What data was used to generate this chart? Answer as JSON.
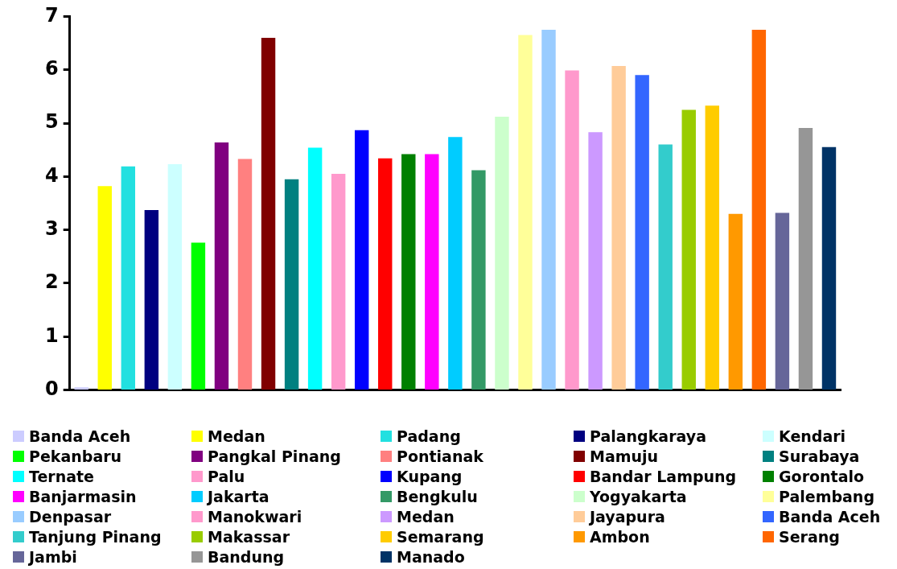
{
  "chart_data": {
    "type": "bar",
    "categories": [
      null,
      null,
      null,
      null,
      null,
      null,
      null,
      null,
      null,
      null,
      null,
      null,
      null,
      null,
      null,
      null,
      null,
      null,
      null,
      null,
      null,
      null,
      null,
      null,
      null,
      null,
      null,
      null,
      null,
      null,
      null,
      null,
      null
    ],
    "ylim": [
      0,
      7
    ],
    "yticks": [
      0,
      1,
      2,
      3,
      4,
      5,
      6,
      7
    ],
    "grid": false,
    "legend": "bottom",
    "tick_labels": "y",
    "series": [
      {
        "name": "Banda Aceh",
        "color": "#ccccff",
        "values": [
          0.05,
          null,
          null,
          null,
          null,
          null,
          null,
          null,
          null,
          null,
          null,
          null,
          null,
          null,
          null,
          null,
          null,
          null,
          null,
          null,
          null,
          null,
          null,
          null,
          null,
          null,
          null,
          null,
          null,
          null,
          null,
          null,
          null
        ]
      },
      {
        "name": "Medan",
        "color": "#ffff00",
        "values": [
          null,
          3.82,
          null,
          null,
          null,
          null,
          null,
          null,
          null,
          null,
          null,
          null,
          null,
          null,
          null,
          null,
          null,
          null,
          null,
          null,
          null,
          null,
          null,
          null,
          null,
          null,
          null,
          null,
          null,
          null,
          null,
          null,
          null
        ]
      },
      {
        "name": "Padang",
        "color": "#22e0e0",
        "values": [
          null,
          null,
          4.19,
          null,
          null,
          null,
          null,
          null,
          null,
          null,
          null,
          null,
          null,
          null,
          null,
          null,
          null,
          null,
          null,
          null,
          null,
          null,
          null,
          null,
          null,
          null,
          null,
          null,
          null,
          null,
          null,
          null,
          null
        ]
      },
      {
        "name": "Palangkaraya",
        "color": "#000080",
        "values": [
          null,
          null,
          null,
          3.37,
          null,
          null,
          null,
          null,
          null,
          null,
          null,
          null,
          null,
          null,
          null,
          null,
          null,
          null,
          null,
          null,
          null,
          null,
          null,
          null,
          null,
          null,
          null,
          null,
          null,
          null,
          null,
          null,
          null
        ]
      },
      {
        "name": "Kendari",
        "color": "#ccffff",
        "values": [
          null,
          null,
          null,
          null,
          4.23,
          null,
          null,
          null,
          null,
          null,
          null,
          null,
          null,
          null,
          null,
          null,
          null,
          null,
          null,
          null,
          null,
          null,
          null,
          null,
          null,
          null,
          null,
          null,
          null,
          null,
          null,
          null,
          null
        ]
      },
      {
        "name": "Pekanbaru",
        "color": "#00ff00",
        "values": [
          null,
          null,
          null,
          null,
          null,
          2.76,
          null,
          null,
          null,
          null,
          null,
          null,
          null,
          null,
          null,
          null,
          null,
          null,
          null,
          null,
          null,
          null,
          null,
          null,
          null,
          null,
          null,
          null,
          null,
          null,
          null,
          null,
          null
        ]
      },
      {
        "name": "Pangkal Pinang",
        "color": "#800080",
        "values": [
          null,
          null,
          null,
          null,
          null,
          null,
          4.64,
          null,
          null,
          null,
          null,
          null,
          null,
          null,
          null,
          null,
          null,
          null,
          null,
          null,
          null,
          null,
          null,
          null,
          null,
          null,
          null,
          null,
          null,
          null,
          null,
          null,
          null
        ]
      },
      {
        "name": "Pontianak",
        "color": "#ff8080",
        "values": [
          null,
          null,
          null,
          null,
          null,
          null,
          null,
          4.33,
          null,
          null,
          null,
          null,
          null,
          null,
          null,
          null,
          null,
          null,
          null,
          null,
          null,
          null,
          null,
          null,
          null,
          null,
          null,
          null,
          null,
          null,
          null,
          null,
          null
        ]
      },
      {
        "name": "Mamuju",
        "color": "#800000",
        "values": [
          null,
          null,
          null,
          null,
          null,
          null,
          null,
          null,
          6.6,
          null,
          null,
          null,
          null,
          null,
          null,
          null,
          null,
          null,
          null,
          null,
          null,
          null,
          null,
          null,
          null,
          null,
          null,
          null,
          null,
          null,
          null,
          null,
          null
        ]
      },
      {
        "name": "Surabaya",
        "color": "#008080",
        "values": [
          null,
          null,
          null,
          null,
          null,
          null,
          null,
          null,
          null,
          3.95,
          null,
          null,
          null,
          null,
          null,
          null,
          null,
          null,
          null,
          null,
          null,
          null,
          null,
          null,
          null,
          null,
          null,
          null,
          null,
          null,
          null,
          null,
          null
        ]
      },
      {
        "name": "Ternate",
        "color": "#00ffff",
        "values": [
          null,
          null,
          null,
          null,
          null,
          null,
          null,
          null,
          null,
          null,
          4.54,
          null,
          null,
          null,
          null,
          null,
          null,
          null,
          null,
          null,
          null,
          null,
          null,
          null,
          null,
          null,
          null,
          null,
          null,
          null,
          null,
          null,
          null
        ]
      },
      {
        "name": "Palu",
        "color": "#ff99cc",
        "values": [
          null,
          null,
          null,
          null,
          null,
          null,
          null,
          null,
          null,
          null,
          null,
          4.05,
          null,
          null,
          null,
          null,
          null,
          null,
          null,
          null,
          null,
          null,
          null,
          null,
          null,
          null,
          null,
          null,
          null,
          null,
          null,
          null,
          null
        ]
      },
      {
        "name": "Kupang",
        "color": "#0000ff",
        "values": [
          null,
          null,
          null,
          null,
          null,
          null,
          null,
          null,
          null,
          null,
          null,
          null,
          4.87,
          null,
          null,
          null,
          null,
          null,
          null,
          null,
          null,
          null,
          null,
          null,
          null,
          null,
          null,
          null,
          null,
          null,
          null,
          null,
          null
        ]
      },
      {
        "name": "Bandar Lampung",
        "color": "#ff0000",
        "values": [
          null,
          null,
          null,
          null,
          null,
          null,
          null,
          null,
          null,
          null,
          null,
          null,
          null,
          4.34,
          null,
          null,
          null,
          null,
          null,
          null,
          null,
          null,
          null,
          null,
          null,
          null,
          null,
          null,
          null,
          null,
          null,
          null,
          null
        ]
      },
      {
        "name": "Gorontalo",
        "color": "#008000",
        "values": [
          null,
          null,
          null,
          null,
          null,
          null,
          null,
          null,
          null,
          null,
          null,
          null,
          null,
          null,
          4.42,
          null,
          null,
          null,
          null,
          null,
          null,
          null,
          null,
          null,
          null,
          null,
          null,
          null,
          null,
          null,
          null,
          null,
          null
        ]
      },
      {
        "name": "Banjarmasin",
        "color": "#ff00ff",
        "values": [
          null,
          null,
          null,
          null,
          null,
          null,
          null,
          null,
          null,
          null,
          null,
          null,
          null,
          null,
          null,
          4.42,
          null,
          null,
          null,
          null,
          null,
          null,
          null,
          null,
          null,
          null,
          null,
          null,
          null,
          null,
          null,
          null,
          null
        ]
      },
      {
        "name": "Jakarta",
        "color": "#00ccff",
        "values": [
          null,
          null,
          null,
          null,
          null,
          null,
          null,
          null,
          null,
          null,
          null,
          null,
          null,
          null,
          null,
          null,
          4.74,
          null,
          null,
          null,
          null,
          null,
          null,
          null,
          null,
          null,
          null,
          null,
          null,
          null,
          null,
          null,
          null
        ]
      },
      {
        "name": "Bengkulu",
        "color": "#339966",
        "values": [
          null,
          null,
          null,
          null,
          null,
          null,
          null,
          null,
          null,
          null,
          null,
          null,
          null,
          null,
          null,
          null,
          null,
          4.12,
          null,
          null,
          null,
          null,
          null,
          null,
          null,
          null,
          null,
          null,
          null,
          null,
          null,
          null,
          null
        ]
      },
      {
        "name": "Yogyakarta",
        "color": "#ccffcc",
        "values": [
          null,
          null,
          null,
          null,
          null,
          null,
          null,
          null,
          null,
          null,
          null,
          null,
          null,
          null,
          null,
          null,
          null,
          null,
          5.12,
          null,
          null,
          null,
          null,
          null,
          null,
          null,
          null,
          null,
          null,
          null,
          null,
          null,
          null
        ]
      },
      {
        "name": "Palembang",
        "color": "#ffff99",
        "values": [
          null,
          null,
          null,
          null,
          null,
          null,
          null,
          null,
          null,
          null,
          null,
          null,
          null,
          null,
          null,
          null,
          null,
          null,
          null,
          6.65,
          null,
          null,
          null,
          null,
          null,
          null,
          null,
          null,
          null,
          null,
          null,
          null,
          null
        ]
      },
      {
        "name": "Denpasar",
        "color": "#99ccff",
        "values": [
          null,
          null,
          null,
          null,
          null,
          null,
          null,
          null,
          null,
          null,
          null,
          null,
          null,
          null,
          null,
          null,
          null,
          null,
          null,
          null,
          6.75,
          null,
          null,
          null,
          null,
          null,
          null,
          null,
          null,
          null,
          null,
          null,
          null
        ]
      },
      {
        "name": "Manokwari",
        "color": "#ff99cc",
        "values": [
          null,
          null,
          null,
          null,
          null,
          null,
          null,
          null,
          null,
          null,
          null,
          null,
          null,
          null,
          null,
          null,
          null,
          null,
          null,
          null,
          null,
          5.99,
          null,
          null,
          null,
          null,
          null,
          null,
          null,
          null,
          null,
          null,
          null
        ]
      },
      {
        "name": "Medan",
        "color": "#cc99ff",
        "values": [
          null,
          null,
          null,
          null,
          null,
          null,
          null,
          null,
          null,
          null,
          null,
          null,
          null,
          null,
          null,
          null,
          null,
          null,
          null,
          null,
          null,
          null,
          4.83,
          null,
          null,
          null,
          null,
          null,
          null,
          null,
          null,
          null,
          null
        ]
      },
      {
        "name": "Jayapura",
        "color": "#ffcc99",
        "values": [
          null,
          null,
          null,
          null,
          null,
          null,
          null,
          null,
          null,
          null,
          null,
          null,
          null,
          null,
          null,
          null,
          null,
          null,
          null,
          null,
          null,
          null,
          null,
          6.07,
          null,
          null,
          null,
          null,
          null,
          null,
          null,
          null,
          null
        ]
      },
      {
        "name": "Banda Aceh",
        "color": "#3366ff",
        "values": [
          null,
          null,
          null,
          null,
          null,
          null,
          null,
          null,
          null,
          null,
          null,
          null,
          null,
          null,
          null,
          null,
          null,
          null,
          null,
          null,
          null,
          null,
          null,
          null,
          5.9,
          null,
          null,
          null,
          null,
          null,
          null,
          null,
          null
        ]
      },
      {
        "name": "Tanjung Pinang",
        "color": "#33cccc",
        "values": [
          null,
          null,
          null,
          null,
          null,
          null,
          null,
          null,
          null,
          null,
          null,
          null,
          null,
          null,
          null,
          null,
          null,
          null,
          null,
          null,
          null,
          null,
          null,
          null,
          null,
          4.6,
          null,
          null,
          null,
          null,
          null,
          null,
          null
        ]
      },
      {
        "name": "Makassar",
        "color": "#99cc00",
        "values": [
          null,
          null,
          null,
          null,
          null,
          null,
          null,
          null,
          null,
          null,
          null,
          null,
          null,
          null,
          null,
          null,
          null,
          null,
          null,
          null,
          null,
          null,
          null,
          null,
          null,
          null,
          5.25,
          null,
          null,
          null,
          null,
          null,
          null
        ]
      },
      {
        "name": "Semarang",
        "color": "#ffcc00",
        "values": [
          null,
          null,
          null,
          null,
          null,
          null,
          null,
          null,
          null,
          null,
          null,
          null,
          null,
          null,
          null,
          null,
          null,
          null,
          null,
          null,
          null,
          null,
          null,
          null,
          null,
          null,
          null,
          5.33,
          null,
          null,
          null,
          null,
          null
        ]
      },
      {
        "name": "Ambon",
        "color": "#ff9900",
        "values": [
          null,
          null,
          null,
          null,
          null,
          null,
          null,
          null,
          null,
          null,
          null,
          null,
          null,
          null,
          null,
          null,
          null,
          null,
          null,
          null,
          null,
          null,
          null,
          null,
          null,
          null,
          null,
          null,
          3.3,
          null,
          null,
          null,
          null
        ]
      },
      {
        "name": "Serang",
        "color": "#ff6600",
        "values": [
          null,
          null,
          null,
          null,
          null,
          null,
          null,
          null,
          null,
          null,
          null,
          null,
          null,
          null,
          null,
          null,
          null,
          null,
          null,
          null,
          null,
          null,
          null,
          null,
          null,
          null,
          null,
          null,
          null,
          6.75,
          null,
          null,
          null
        ]
      },
      {
        "name": "Jambi",
        "color": "#666699",
        "values": [
          null,
          null,
          null,
          null,
          null,
          null,
          null,
          null,
          null,
          null,
          null,
          null,
          null,
          null,
          null,
          null,
          null,
          null,
          null,
          null,
          null,
          null,
          null,
          null,
          null,
          null,
          null,
          null,
          null,
          null,
          3.32,
          null,
          null
        ]
      },
      {
        "name": "Bandung",
        "color": "#969696",
        "values": [
          null,
          null,
          null,
          null,
          null,
          null,
          null,
          null,
          null,
          null,
          null,
          null,
          null,
          null,
          null,
          null,
          null,
          null,
          null,
          null,
          null,
          null,
          null,
          null,
          null,
          null,
          null,
          null,
          null,
          null,
          null,
          4.91,
          null
        ]
      },
      {
        "name": "Manado",
        "color": "#003366",
        "values": [
          null,
          null,
          null,
          null,
          null,
          null,
          null,
          null,
          null,
          null,
          null,
          null,
          null,
          null,
          null,
          null,
          null,
          null,
          null,
          null,
          null,
          null,
          null,
          null,
          null,
          null,
          null,
          null,
          null,
          null,
          null,
          null,
          4.55
        ]
      }
    ]
  }
}
